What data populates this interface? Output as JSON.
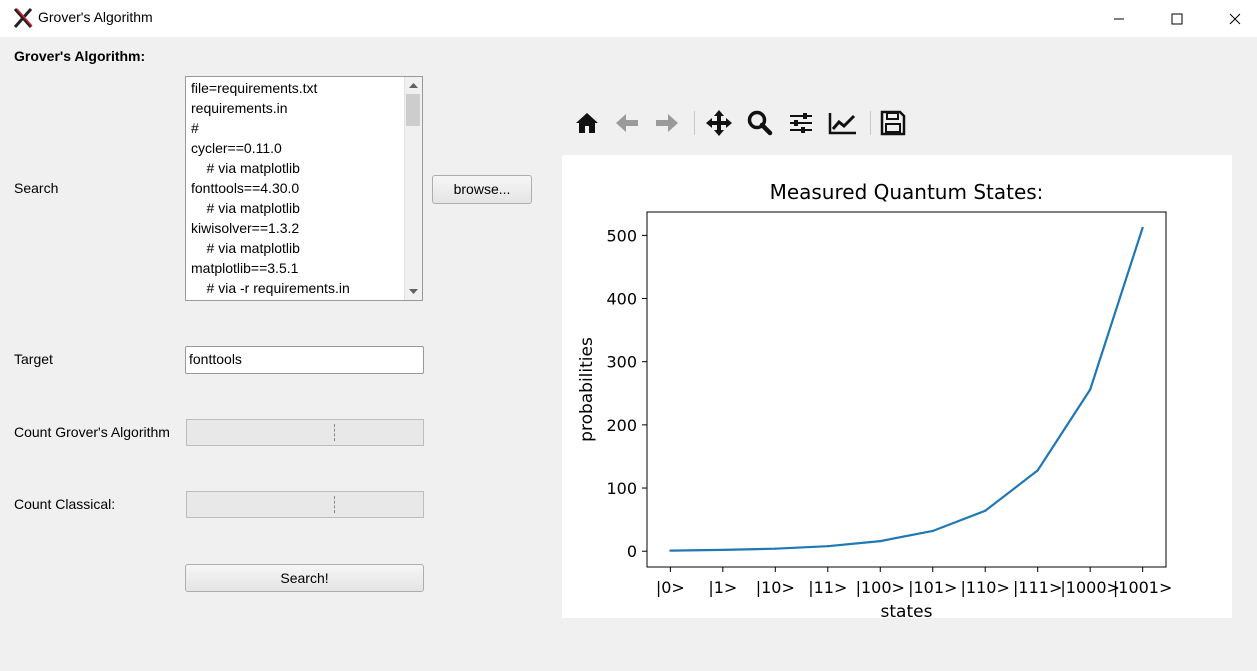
{
  "window": {
    "title": "Grover's Algorithm"
  },
  "form": {
    "heading": "Grover's Algorithm:",
    "search_label": "Search",
    "file_lines": [
      "file=requirements.txt",
      "requirements.in",
      "#",
      "cycler==0.11.0",
      "    # via matplotlib",
      "fonttools==4.30.0",
      "    # via matplotlib",
      "kiwisolver==1.3.2",
      "    # via matplotlib",
      "matplotlib==3.5.1",
      "    # via -r requirements.in"
    ],
    "browse_label": "browse...",
    "target_label": "Target",
    "target_value": "fonttools",
    "count_grover_label": "Count Grover's Algorithm",
    "count_classical_label": "Count Classical:",
    "search_button": "Search!"
  },
  "toolbar": {
    "icons": [
      "home-icon",
      "back-icon",
      "forward-icon",
      "pan-icon",
      "zoom-icon",
      "configure-subplots-icon",
      "edit-axis-icon",
      "save-icon"
    ]
  },
  "chart_data": {
    "type": "line",
    "title": "Measured Quantum States:",
    "xlabel": "states",
    "ylabel": "probabilities",
    "categories": [
      "|0>",
      "|1>",
      "|10>",
      "|11>",
      "|100>",
      "|101>",
      "|110>",
      "|111>",
      "|1000>",
      "|1001>"
    ],
    "values": [
      1,
      2,
      4,
      8,
      16,
      32,
      64,
      128,
      256,
      512
    ],
    "ylim": [
      -25,
      537
    ],
    "yticks": [
      0,
      100,
      200,
      300,
      400,
      500
    ],
    "color": "#1f77b4",
    "grid": false
  }
}
